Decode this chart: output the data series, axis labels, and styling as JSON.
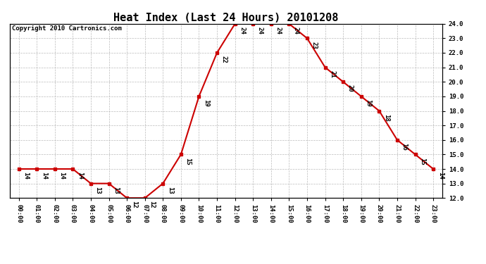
{
  "title": "Heat Index (Last 24 Hours) 20101208",
  "copyright": "Copyright 2010 Cartronics.com",
  "hours": [
    "00:00",
    "01:00",
    "02:00",
    "03:00",
    "04:00",
    "05:00",
    "06:00",
    "07:00",
    "08:00",
    "09:00",
    "10:00",
    "11:00",
    "12:00",
    "13:00",
    "14:00",
    "15:00",
    "16:00",
    "17:00",
    "18:00",
    "19:00",
    "20:00",
    "21:00",
    "22:00",
    "23:00"
  ],
  "values": [
    14,
    14,
    14,
    14,
    13,
    13,
    12,
    12,
    13,
    15,
    19,
    22,
    24,
    24,
    24,
    24,
    23,
    21,
    20,
    19,
    18,
    16,
    15,
    14
  ],
  "ylim": [
    12.0,
    24.0
  ],
  "ytick_step": 1.0,
  "line_color": "#cc0000",
  "marker_color": "#cc0000",
  "bg_color": "#ffffff",
  "grid_color": "#bbbbbb",
  "title_fontsize": 11,
  "copyright_fontsize": 6.5,
  "label_fontsize": 6.5,
  "tick_fontsize": 6.5
}
